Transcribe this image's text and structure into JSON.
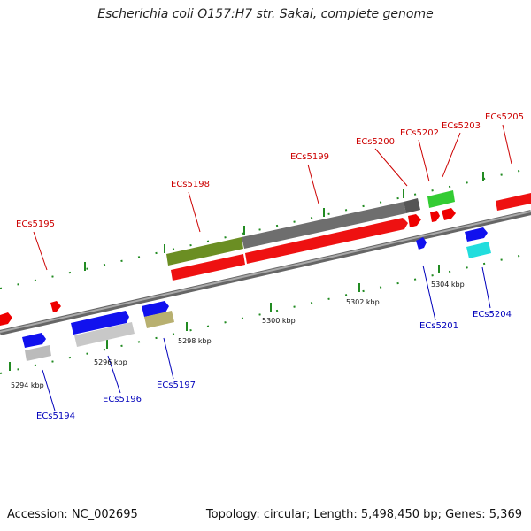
{
  "title": "Escherichia coli O157:H7 str. Sakai, complete genome",
  "footer": {
    "accession": "Accession: NC_002695",
    "info": "Topology: circular; Length: 5,498,450 bp; Genes: 5,369"
  },
  "ticks": [
    "5294 kbp",
    "5296 kbp",
    "5298 kbp",
    "5300 kbp",
    "5302 kbp",
    "5304 kbp"
  ],
  "genes_forward": [
    "ECs5195",
    "ECs5198",
    "ECs5199",
    "ECs5200",
    "ECs5202",
    "ECs5203",
    "ECs5205"
  ],
  "genes_reverse": [
    "ECs5194",
    "ECs5196",
    "ECs5197",
    "ECs5201",
    "ECs5204"
  ],
  "colors": {
    "forward_label": "#cc0000",
    "reverse_label": "#0000bb",
    "tick_green": "#228b22",
    "backbone": "#888888"
  }
}
